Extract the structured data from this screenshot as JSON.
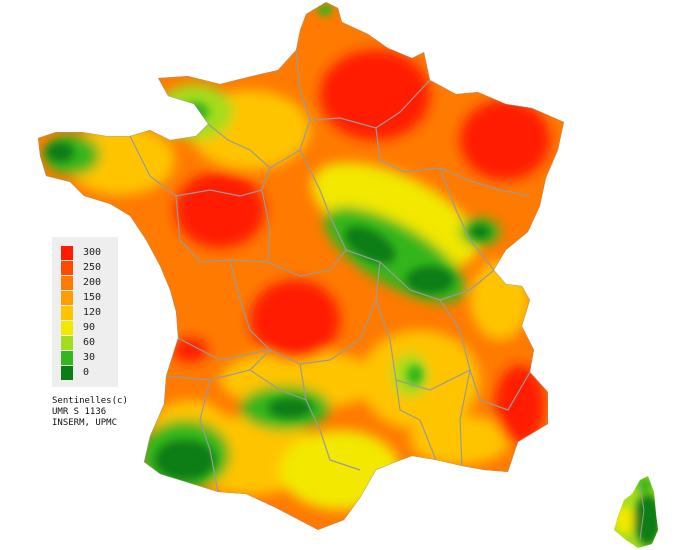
{
  "map": {
    "colors": {
      "c300": "#ff1a00",
      "c250": "#ff4a00",
      "c200": "#ff7a00",
      "c150": "#ff9e00",
      "c120": "#ffc400",
      "c90": "#f2e800",
      "c60": "#a5dc1e",
      "c30": "#35b51e",
      "c0": "#0a7d14",
      "border": "#9a9a9a"
    }
  },
  "legend": {
    "items": [
      {
        "label": "300",
        "color": "#ff1a00"
      },
      {
        "label": "250",
        "color": "#ff4a00"
      },
      {
        "label": "200",
        "color": "#ff7a00"
      },
      {
        "label": "150",
        "color": "#ff9e00"
      },
      {
        "label": "120",
        "color": "#ffc400"
      },
      {
        "label": "90",
        "color": "#f2e800"
      },
      {
        "label": "60",
        "color": "#a5dc1e"
      },
      {
        "label": "30",
        "color": "#35b51e"
      },
      {
        "label": "0",
        "color": "#0a7d14"
      }
    ]
  },
  "credits": {
    "line1": "Sentinelles(c)",
    "line2": "UMR S 1136",
    "line3": "INSERM, UPMC"
  }
}
